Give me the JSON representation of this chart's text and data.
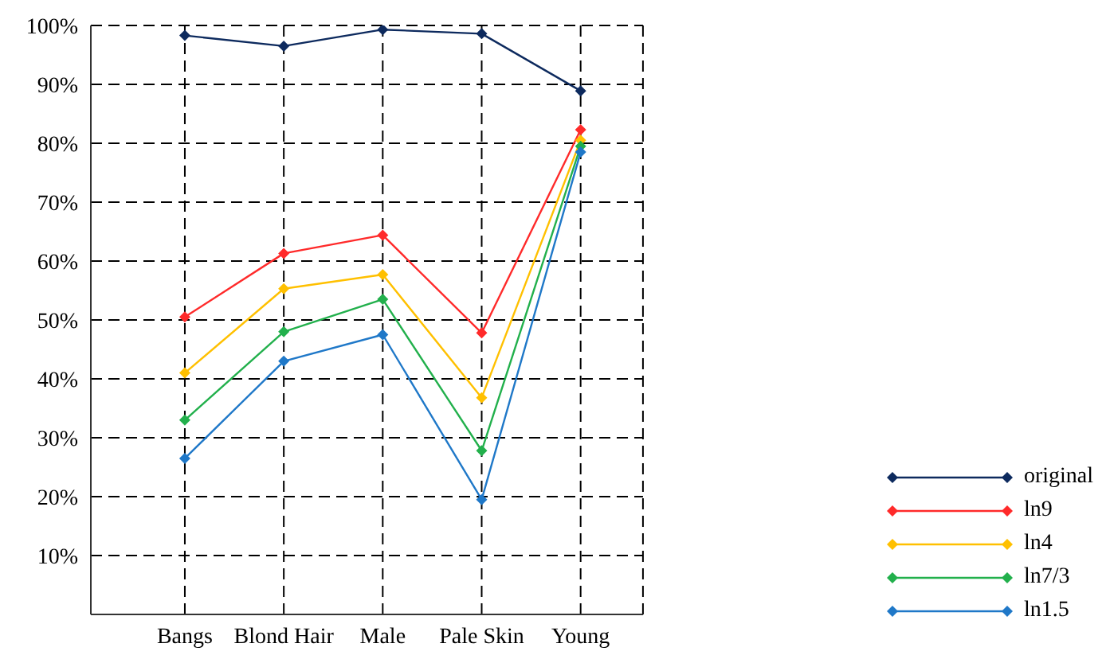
{
  "chart_data": {
    "type": "line",
    "categories": [
      "Bangs",
      "Blond Hair",
      "Male",
      "Pale Skin",
      "Young"
    ],
    "series": [
      {
        "name": "original",
        "color": "#0d2a5e",
        "values": [
          98.3,
          96.5,
          99.3,
          98.6,
          88.9
        ]
      },
      {
        "name": "ln9",
        "color": "#ff2a2a",
        "values": [
          50.5,
          61.3,
          64.4,
          47.8,
          82.3
        ]
      },
      {
        "name": "ln4",
        "color": "#ffc000",
        "values": [
          41,
          55.3,
          57.7,
          36.8,
          80.5
        ]
      },
      {
        "name": "ln7/3",
        "color": "#22b04c",
        "values": [
          33,
          48,
          53.5,
          27.8,
          79.5
        ]
      },
      {
        "name": "ln1.5",
        "color": "#1f78c8",
        "values": [
          26.5,
          43,
          47.5,
          19.5,
          78.5
        ]
      }
    ],
    "ylim": [
      0,
      100
    ],
    "yticks": [
      {
        "value": 10,
        "label": "10%"
      },
      {
        "value": 20,
        "label": "20%"
      },
      {
        "value": 30,
        "label": "30%"
      },
      {
        "value": 40,
        "label": "40%"
      },
      {
        "value": 50,
        "label": "50%"
      },
      {
        "value": 60,
        "label": "60%"
      },
      {
        "value": 70,
        "label": "70%"
      },
      {
        "value": 80,
        "label": "80%"
      },
      {
        "value": 90,
        "label": "90%"
      },
      {
        "value": 100,
        "label": "100%"
      }
    ],
    "grid": true,
    "legend": "right",
    "marker": "diamond"
  }
}
